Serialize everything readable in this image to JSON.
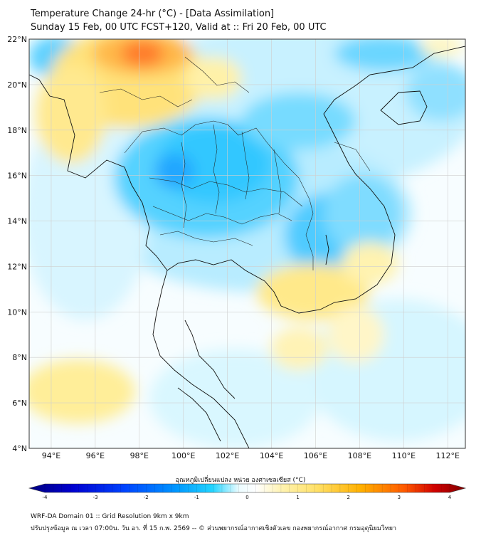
{
  "header": {
    "title": "Temperature Change 24-hr (°C) - [Data Assimilation]",
    "subtitle": "Sunday 15 Feb, 00 UTC FCST+120, Valid at :: Fri 20 Feb, 00 UTC"
  },
  "map": {
    "lat_labels": [
      "22°N",
      "20°N",
      "18°N",
      "16°N",
      "14°N",
      "12°N",
      "10°N",
      "8°N",
      "6°N",
      "4°N"
    ],
    "lon_labels": [
      "94°E",
      "96°E",
      "98°E",
      "100°E",
      "102°E",
      "104°E",
      "106°E",
      "108°E",
      "110°E",
      "112°E"
    ],
    "lat_range": [
      4,
      22
    ],
    "lon_range": [
      93,
      112.8
    ],
    "grid": true,
    "colors": {
      "background": "#ffffff",
      "coast": "#111111",
      "grid": "#cfcfcf"
    }
  },
  "colorbar": {
    "label": "อุณหภูมิเปลี่ยนแปลง หน่วย องศาเซลเซียส (°C)",
    "ticks": [
      "-4",
      "-3",
      "-2",
      "-1",
      "0",
      "1",
      "2",
      "3",
      "4"
    ],
    "range": [
      -4,
      4
    ],
    "colors": [
      "#00007f",
      "#0000d0",
      "#0044ff",
      "#0099ff",
      "#22d4ff",
      "#eafcff",
      "#ffffff",
      "#fff3b0",
      "#ffe066",
      "#ffb000",
      "#ff5a00",
      "#d00000",
      "#7f0000"
    ]
  },
  "footer": {
    "line1": "WRF-DA Domain 01 :: Grid Resolution 9km x 9km",
    "line2": "ปรับปรุงข้อมูล ณ เวลา 07:00น. วัน อา. ที่ 15 ก.พ. 2569 -- © ส่วนพยากรณ์อากาศเชิงตัวเลข กองพยากรณ์อากาศ กรมอุตุนิยมวิทยา"
  }
}
